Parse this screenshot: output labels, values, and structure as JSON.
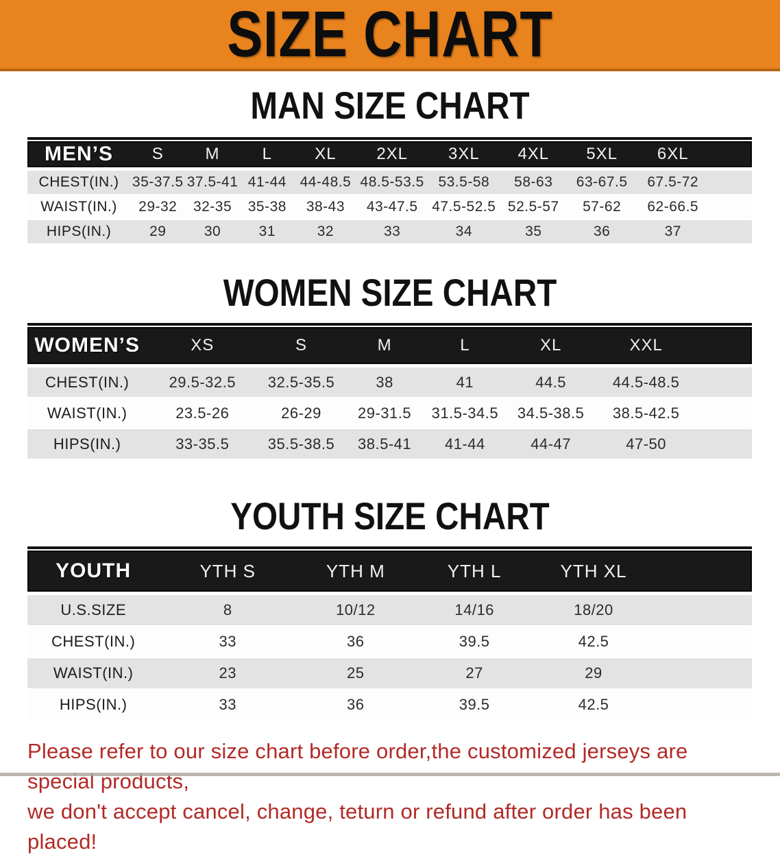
{
  "banner": {
    "title": "SIZE CHART",
    "bg_color": "#E8831E",
    "border_color": "#B5660E"
  },
  "sections": [
    {
      "heading": "MAN SIZE CHART",
      "table": {
        "id": "mens",
        "header_label": "MEN’S",
        "sizes": [
          "S",
          "M",
          "L",
          "XL",
          "2XL",
          "3XL",
          "4XL",
          "5XL",
          "6XL"
        ],
        "rows": [
          {
            "label": "CHEST(IN.)",
            "values": [
              "35-37.5",
              "37.5-41",
              "41-44",
              "44-48.5",
              "48.5-53.5",
              "53.5-58",
              "58-63",
              "63-67.5",
              "67.5-72"
            ]
          },
          {
            "label": "WAIST(IN.)",
            "values": [
              "29-32",
              "32-35",
              "35-38",
              "38-43",
              "43-47.5",
              "47.5-52.5",
              "52.5-57",
              "57-62",
              "62-66.5"
            ]
          },
          {
            "label": "HIPS(IN.)",
            "values": [
              "29",
              "30",
              "31",
              "32",
              "33",
              "34",
              "35",
              "36",
              "37"
            ]
          }
        ]
      }
    },
    {
      "heading": "WOMEN SIZE CHART",
      "table": {
        "id": "womens",
        "header_label": "WOMEN’S",
        "sizes": [
          "XS",
          "S",
          "M",
          "L",
          "XL",
          "XXL"
        ],
        "rows": [
          {
            "label": "CHEST(IN.)",
            "values": [
              "29.5-32.5",
              "32.5-35.5",
              "38",
              "41",
              "44.5",
              "44.5-48.5"
            ]
          },
          {
            "label": "WAIST(IN.)",
            "values": [
              "23.5-26",
              "26-29",
              "29-31.5",
              "31.5-34.5",
              "34.5-38.5",
              "38.5-42.5"
            ]
          },
          {
            "label": "HIPS(IN.)",
            "values": [
              "33-35.5",
              "35.5-38.5",
              "38.5-41",
              "41-44",
              "44-47",
              "47-50"
            ]
          }
        ]
      }
    },
    {
      "heading": "YOUTH SIZE CHART",
      "table": {
        "id": "youth",
        "header_label": "YOUTH",
        "sizes": [
          "YTH S",
          "YTH M",
          "YTH L",
          "YTH XL"
        ],
        "rows": [
          {
            "label": "U.S.SIZE",
            "values": [
              "8",
              "10/12",
              "14/16",
              "18/20"
            ]
          },
          {
            "label": "CHEST(IN.)",
            "values": [
              "33",
              "36",
              "39.5",
              "42.5"
            ]
          },
          {
            "label": "WAIST(IN.)",
            "values": [
              "23",
              "25",
              "27",
              "29"
            ]
          },
          {
            "label": "HIPS(IN.)",
            "values": [
              "33",
              "36",
              "39.5",
              "42.5"
            ]
          }
        ]
      }
    }
  ],
  "footer": {
    "line1": "Please refer to our size chart before order,the customized jerseys are special products,",
    "line2": "we don't accept cancel, change, teturn or refund after order has been placed!",
    "text_color": "#B22A26"
  }
}
